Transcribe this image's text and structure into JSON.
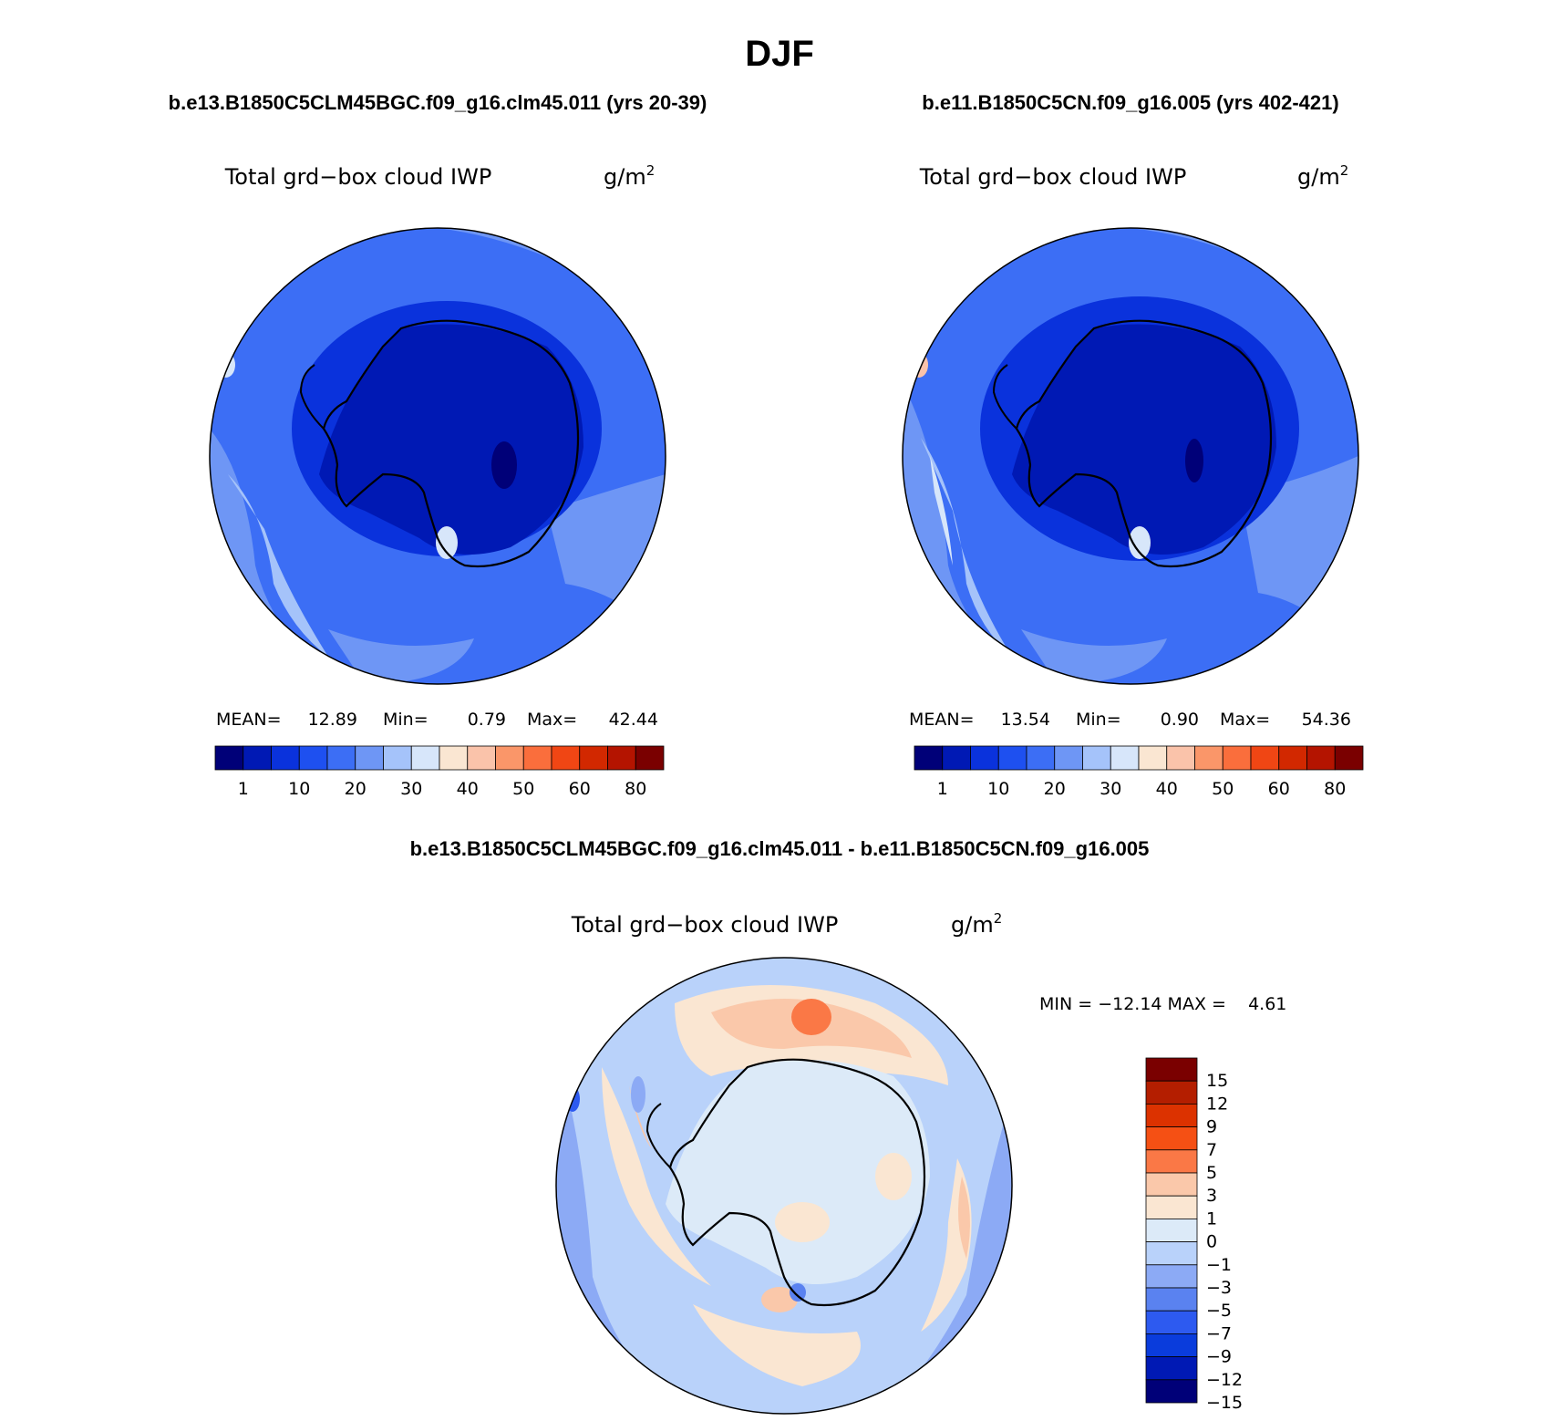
{
  "page": {
    "season": "DJF",
    "panels": [
      {
        "case_title": "b.e13.B1850C5CLM45BGC.f09_g16.clm45.011 (yrs 20-39)",
        "variable": "Total grd−box cloud IWP",
        "units": "g/m",
        "units_exp": "2",
        "stats": {
          "mean_label": "MEAN=",
          "mean": "12.89",
          "min_label": "Min=",
          "min": "0.79",
          "max_label": "Max=",
          "max": "42.44"
        }
      },
      {
        "case_title": "b.e11.B1850C5CN.f09_g16.005 (yrs 402-421)",
        "variable": "Total grd−box cloud IWP",
        "units": "g/m",
        "units_exp": "2",
        "stats": {
          "mean_label": "MEAN=",
          "mean": "13.54",
          "min_label": "Min=",
          "min": "0.90",
          "max_label": "Max=",
          "max": "54.36"
        }
      }
    ],
    "diff": {
      "title": "b.e13.B1850C5CLM45BGC.f09_g16.clm45.011 - b.e11.B1850C5CN.f09_g16.005",
      "variable": "Total grd−box cloud IWP",
      "units": "g/m",
      "units_exp": "2",
      "minmax": "MIN = −12.14 MAX =    4.61"
    },
    "abs_colorbar": {
      "colors": [
        "#000078",
        "#0019b4",
        "#0a32dc",
        "#1e50f0",
        "#3c6ef5",
        "#6e96f5",
        "#a5c3fa",
        "#d7e6fa",
        "#fae6d2",
        "#fac3aa",
        "#fa9669",
        "#fa6e3c",
        "#f04614",
        "#d22800",
        "#b41400",
        "#7a0000"
      ],
      "tick_labels": [
        "1",
        "10",
        "20",
        "30",
        "40",
        "50",
        "60",
        "80"
      ]
    },
    "diff_colorbar": {
      "colors": [
        "#7a0000",
        "#b41e00",
        "#dc3200",
        "#f55014",
        "#fa7846",
        "#fac8aa",
        "#fae6d2",
        "#dceaf8",
        "#b9d2fa",
        "#8caaf5",
        "#5a82f0",
        "#2d5af0",
        "#0a3cdc",
        "#0019b4",
        "#000078"
      ],
      "tick_labels": [
        "15",
        "12",
        "9",
        "7",
        "5",
        "3",
        "1",
        "0",
        "−1",
        "−3",
        "−5",
        "−7",
        "−9",
        "−12",
        "−15"
      ]
    }
  }
}
